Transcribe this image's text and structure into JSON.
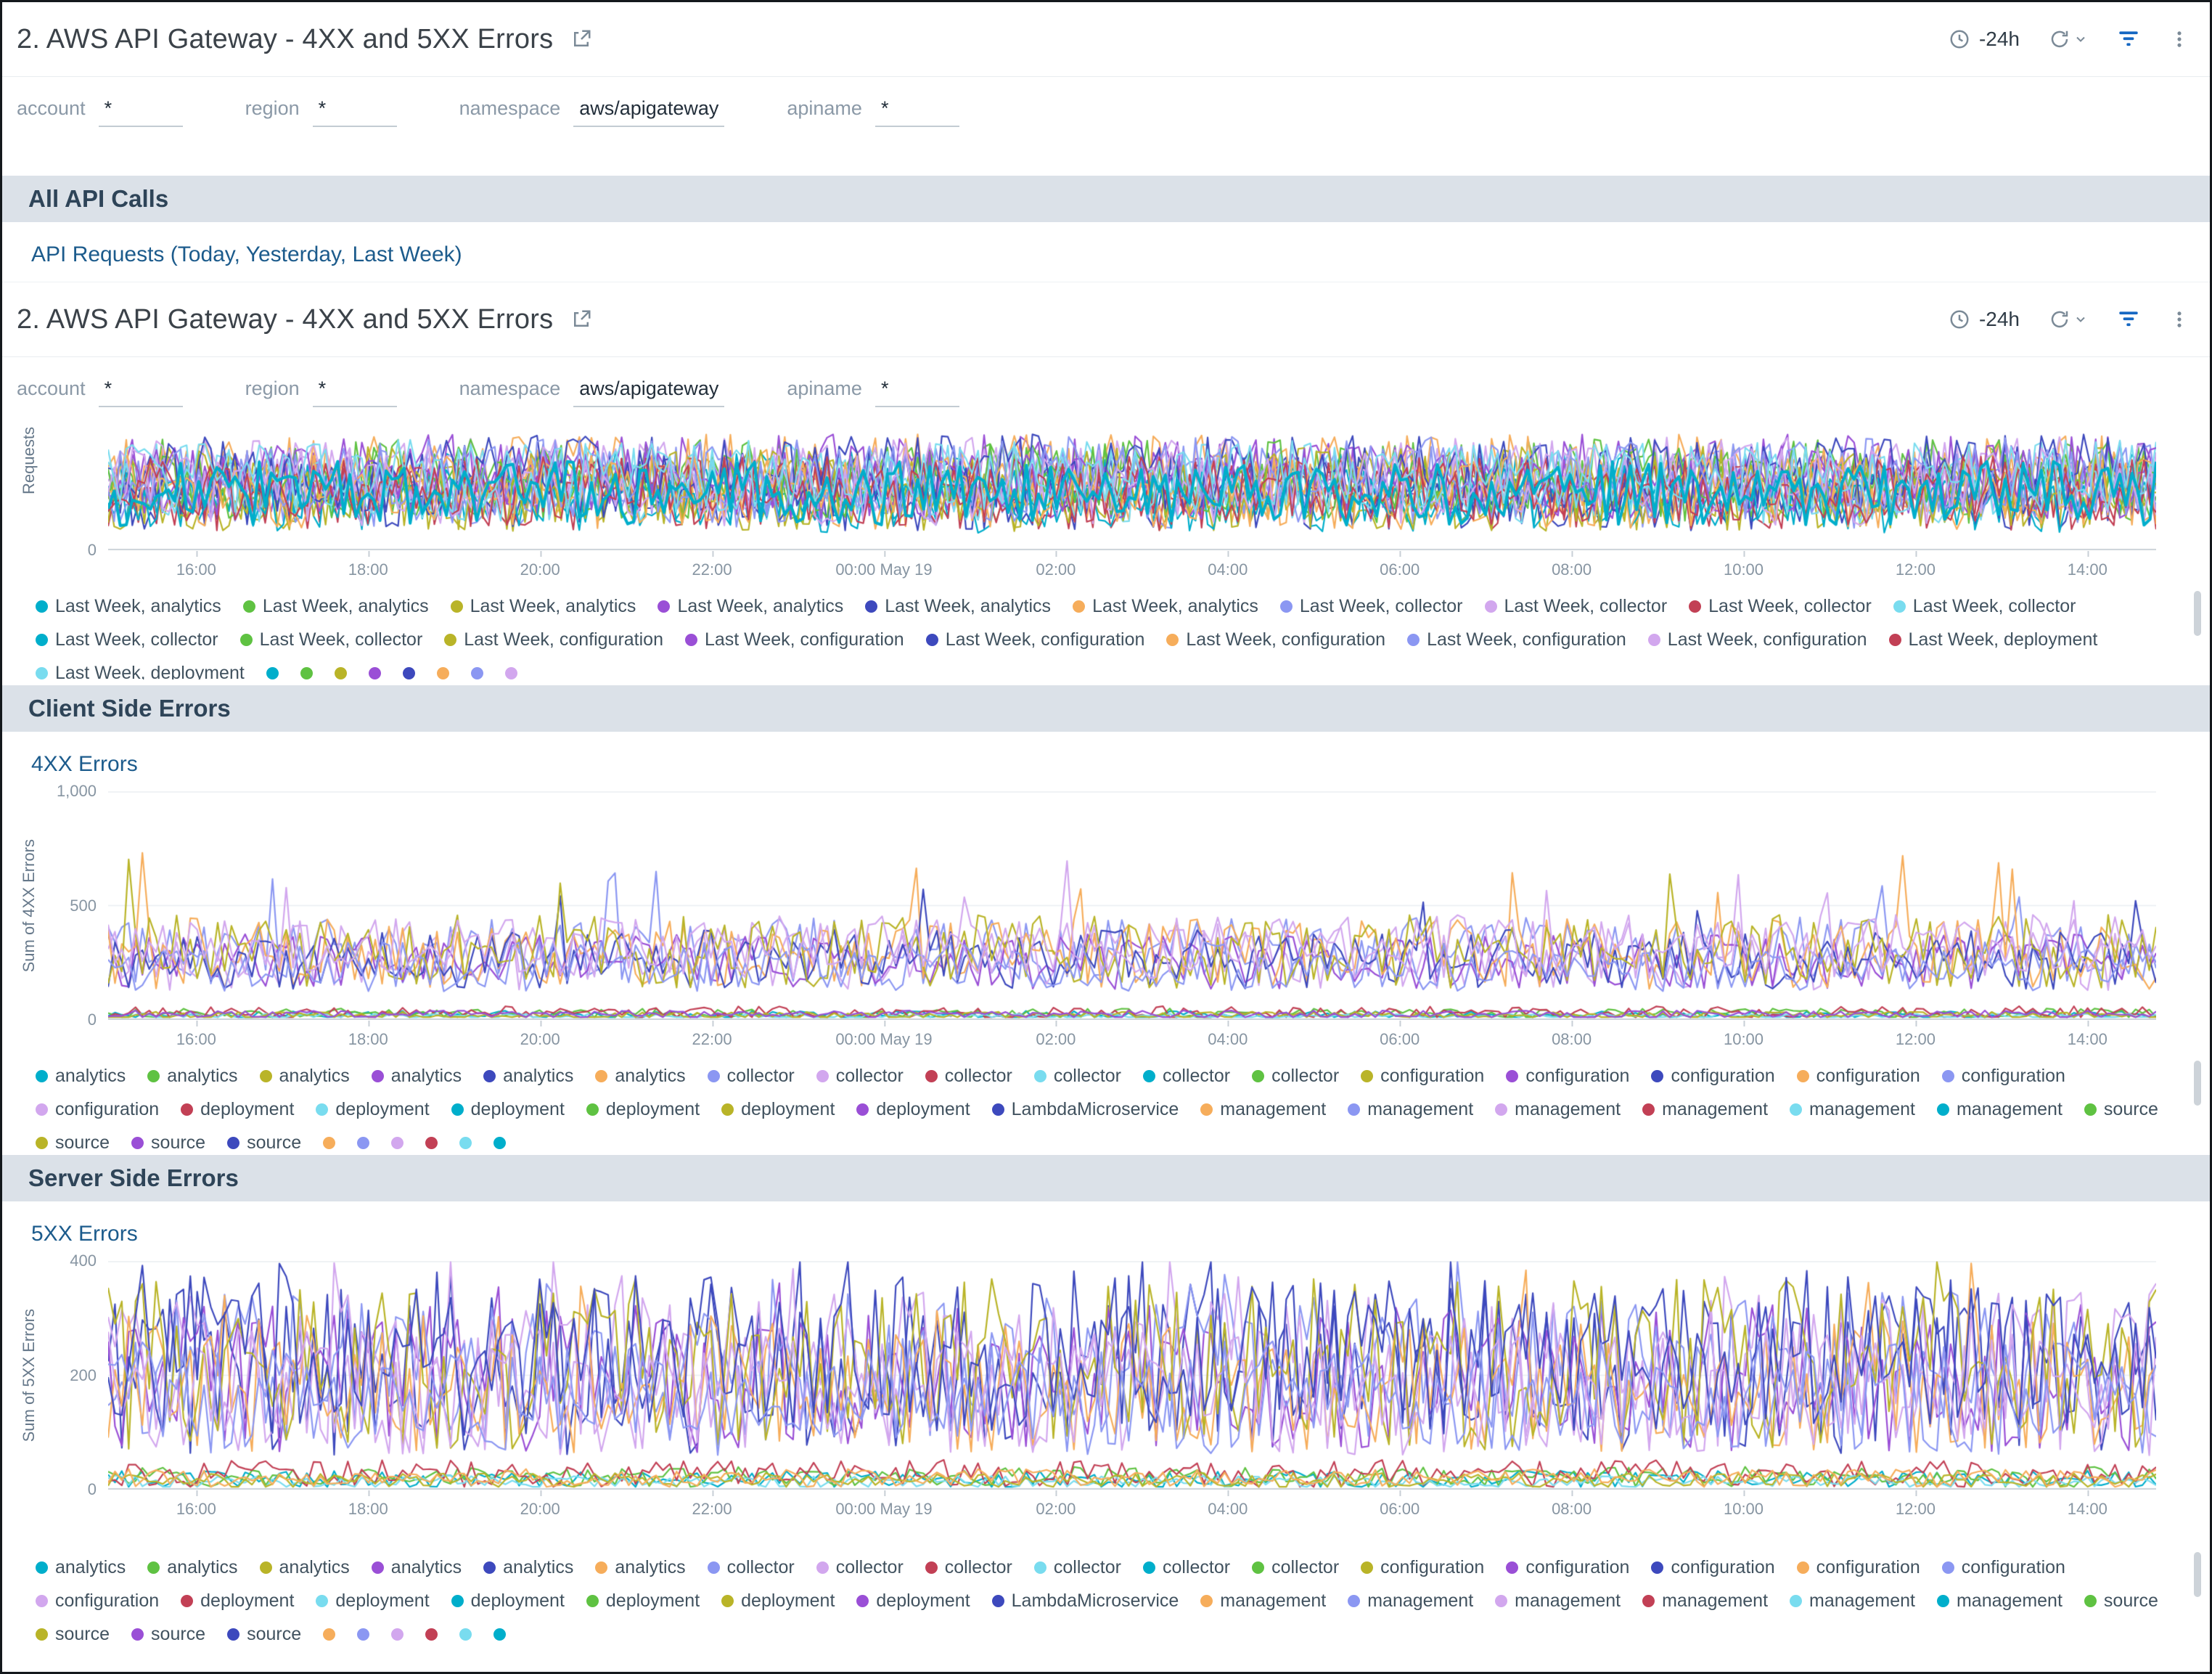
{
  "header": {
    "title": "2. AWS API Gateway - 4XX and 5XX Errors",
    "time_range": "-24h"
  },
  "icons": {
    "share": "open-in-new",
    "clock": "clock",
    "refresh": "refresh",
    "chevron": "chevron-down",
    "filter": "filter-funnel",
    "kebab": "kebab-menu",
    "legend_dot": "series-color-dot"
  },
  "filters": [
    {
      "label": "account",
      "value": "*"
    },
    {
      "label": "region",
      "value": "*"
    },
    {
      "label": "namespace",
      "value": "aws/apigateway"
    },
    {
      "label": "apiname",
      "value": "*"
    }
  ],
  "sections": {
    "all_api_calls": "All API Calls",
    "client_side": "Client Side Errors",
    "server_side": "Server Side Errors"
  },
  "panels": {
    "api_requests": "API Requests (Today, Yesterday, Last Week)",
    "fourxx": "4XX Errors",
    "fivexx": "5XX Errors"
  },
  "palette": [
    "#00aecb",
    "#5fc242",
    "#b9b428",
    "#9a4fd6",
    "#3d49bd",
    "#f6ad5b",
    "#8b97f2",
    "#d2a7ee",
    "#c24055",
    "#79dcef"
  ],
  "legends": {
    "api_requests": {
      "items": [
        {
          "label": "Last Week, analytics",
          "color": 0
        },
        {
          "label": "Last Week, analytics",
          "color": 1
        },
        {
          "label": "Last Week, analytics",
          "color": 2
        },
        {
          "label": "Last Week, analytics",
          "color": 3
        },
        {
          "label": "Last Week, analytics",
          "color": 4
        },
        {
          "label": "Last Week, analytics",
          "color": 5
        },
        {
          "label": "Last Week, collector",
          "color": 6
        },
        {
          "label": "Last Week, collector",
          "color": 7
        },
        {
          "label": "Last Week, collector",
          "color": 8
        },
        {
          "label": "Last Week, collector",
          "color": 9
        },
        {
          "label": "Last Week, collector",
          "color": 0
        },
        {
          "label": "Last Week, collector",
          "color": 1
        },
        {
          "label": "Last Week, configuration",
          "color": 2
        },
        {
          "label": "Last Week, configuration",
          "color": 3
        },
        {
          "label": "Last Week, configuration",
          "color": 4
        },
        {
          "label": "Last Week, configuration",
          "color": 5
        },
        {
          "label": "Last Week, configuration",
          "color": 6
        },
        {
          "label": "Last Week, configuration",
          "color": 7
        },
        {
          "label": "Last Week, deployment",
          "color": 8
        },
        {
          "label": "Last Week, deployment",
          "color": 9
        }
      ],
      "overflow_dots": [
        0,
        1,
        2,
        3,
        4,
        5,
        6,
        7
      ]
    },
    "errors": {
      "items": [
        {
          "label": "analytics",
          "color": 0
        },
        {
          "label": "analytics",
          "color": 1
        },
        {
          "label": "analytics",
          "color": 2
        },
        {
          "label": "analytics",
          "color": 3
        },
        {
          "label": "analytics",
          "color": 4
        },
        {
          "label": "analytics",
          "color": 5
        },
        {
          "label": "collector",
          "color": 6
        },
        {
          "label": "collector",
          "color": 7
        },
        {
          "label": "collector",
          "color": 8
        },
        {
          "label": "collector",
          "color": 9
        },
        {
          "label": "collector",
          "color": 0
        },
        {
          "label": "collector",
          "color": 1
        },
        {
          "label": "configuration",
          "color": 2
        },
        {
          "label": "configuration",
          "color": 3
        },
        {
          "label": "configuration",
          "color": 4
        },
        {
          "label": "configuration",
          "color": 5
        },
        {
          "label": "configuration",
          "color": 6
        },
        {
          "label": "configuration",
          "color": 7
        },
        {
          "label": "deployment",
          "color": 8
        },
        {
          "label": "deployment",
          "color": 9
        },
        {
          "label": "deployment",
          "color": 0
        },
        {
          "label": "deployment",
          "color": 1
        },
        {
          "label": "deployment",
          "color": 2
        },
        {
          "label": "deployment",
          "color": 3
        },
        {
          "label": "LambdaMicroservice",
          "color": 4
        },
        {
          "label": "management",
          "color": 5
        },
        {
          "label": "management",
          "color": 6
        },
        {
          "label": "management",
          "color": 7
        },
        {
          "label": "management",
          "color": 8
        },
        {
          "label": "management",
          "color": 9
        },
        {
          "label": "management",
          "color": 0
        },
        {
          "label": "source",
          "color": 1
        },
        {
          "label": "source",
          "color": 2
        },
        {
          "label": "source",
          "color": 3
        },
        {
          "label": "source",
          "color": 4
        }
      ],
      "overflow_dots": [
        5,
        6,
        7,
        8,
        9,
        0
      ]
    }
  },
  "chart_data": [
    {
      "type": "line",
      "panel": "API Requests (Today, Yesterday, Last Week)",
      "ylabel": "Requests",
      "x_ticks": [
        "16:00",
        "18:00",
        "20:00",
        "22:00",
        "00:00 May 19",
        "02:00",
        "04:00",
        "06:00",
        "08:00",
        "10:00",
        "12:00",
        "14:00"
      ],
      "y_ticks": [
        "0"
      ],
      "ylim": [
        0,
        100
      ],
      "grid": false,
      "legend_position": "bottom",
      "note": "dense overlapping noisy series spanning full 24h window; values approximate",
      "points": 340,
      "series": [
        {
          "name": "Last Week, analytics",
          "color": 0,
          "base": 50,
          "amp": 30,
          "seed": 11
        },
        {
          "name": "Last Week, analytics",
          "color": 1,
          "base": 56,
          "amp": 34,
          "seed": 12
        },
        {
          "name": "Last Week, analytics",
          "color": 2,
          "base": 45,
          "amp": 30,
          "seed": 13
        },
        {
          "name": "Last Week, analytics",
          "color": 3,
          "base": 60,
          "amp": 34,
          "seed": 14
        },
        {
          "name": "Last Week, analytics",
          "color": 4,
          "base": 48,
          "amp": 32,
          "seed": 15
        },
        {
          "name": "Last Week, analytics",
          "color": 5,
          "base": 58,
          "amp": 36,
          "seed": 16
        },
        {
          "name": "Last Week, collector",
          "color": 6,
          "base": 52,
          "amp": 34,
          "seed": 17
        },
        {
          "name": "Last Week, collector",
          "color": 7,
          "base": 62,
          "amp": 30,
          "seed": 18
        },
        {
          "name": "Last Week, collector",
          "color": 8,
          "base": 46,
          "amp": 30,
          "seed": 19
        },
        {
          "name": "Last Week, collector",
          "color": 9,
          "base": 55,
          "amp": 33,
          "seed": 20
        },
        {
          "name": "Last Week, collector",
          "color": 0,
          "base": 42,
          "amp": 28,
          "seed": 21
        },
        {
          "name": "Last Week, collector",
          "color": 1,
          "base": 58,
          "amp": 32,
          "seed": 22
        },
        {
          "name": "Last Week, configuration",
          "color": 2,
          "base": 50,
          "amp": 34,
          "seed": 23
        },
        {
          "name": "Last Week, configuration",
          "color": 3,
          "base": 55,
          "amp": 30,
          "seed": 24
        },
        {
          "name": "Last Week, configuration",
          "color": 4,
          "base": 60,
          "amp": 34,
          "seed": 25
        },
        {
          "name": "Last Week, configuration",
          "color": 5,
          "base": 47,
          "amp": 30,
          "seed": 26
        },
        {
          "name": "Last Week, configuration",
          "color": 6,
          "base": 57,
          "amp": 35,
          "seed": 27
        },
        {
          "name": "Last Week, configuration",
          "color": 7,
          "base": 52,
          "amp": 32,
          "seed": 28
        },
        {
          "name": "Last Week, deployment",
          "color": 8,
          "base": 48,
          "amp": 28,
          "seed": 29
        },
        {
          "name": "Last Week, deployment",
          "color": 9,
          "base": 60,
          "amp": 30,
          "seed": 30
        },
        {
          "name": "Last Week, analytics",
          "color": 0,
          "base": 46,
          "amp": 26,
          "seed": 99,
          "lw": 4
        }
      ]
    },
    {
      "type": "line",
      "panel": "4XX Errors",
      "ylabel": "Sum of 4XX Errors",
      "x_ticks": [
        "16:00",
        "18:00",
        "20:00",
        "22:00",
        "00:00 May 19",
        "02:00",
        "04:00",
        "06:00",
        "08:00",
        "10:00",
        "12:00",
        "14:00"
      ],
      "y_ticks": [
        "1,000",
        "500",
        "0"
      ],
      "ylim": [
        0,
        1000
      ],
      "gridlines": [
        500,
        1000
      ],
      "legend_position": "bottom",
      "note": "main band oscillates roughly 100-500 with occasional spikes toward 650; several series hug 0-60",
      "points": 300,
      "series": [
        {
          "name": "collector",
          "color": 6,
          "base": 300,
          "amp": 150,
          "seed": 41,
          "spike": 0.02,
          "spike_to": 620
        },
        {
          "name": "configuration",
          "color": 7,
          "base": 280,
          "amp": 150,
          "seed": 42,
          "spike": 0.015,
          "spike_to": 600
        },
        {
          "name": "analytics",
          "color": 3,
          "base": 255,
          "amp": 120,
          "seed": 43
        },
        {
          "name": "configuration",
          "color": 5,
          "base": 290,
          "amp": 155,
          "seed": 44,
          "spike": 0.02,
          "spike_to": 640
        },
        {
          "name": "analytics",
          "color": 4,
          "base": 265,
          "amp": 130,
          "seed": 45,
          "spike": 0.01,
          "spike_to": 560
        },
        {
          "name": "configuration",
          "color": 2,
          "base": 300,
          "amp": 160,
          "seed": 46,
          "spike": 0.02,
          "spike_to": 650
        },
        {
          "name": "management",
          "color": 6,
          "base": 235,
          "amp": 110,
          "seed": 47
        },
        {
          "name": "management",
          "color": 7,
          "base": 320,
          "amp": 140,
          "seed": 48,
          "spike": 0.015,
          "spike_to": 620
        },
        {
          "name": "analytics",
          "color": 0,
          "base": 22,
          "amp": 18,
          "seed": 49
        },
        {
          "name": "deployment",
          "color": 1,
          "base": 28,
          "amp": 22,
          "seed": 50
        },
        {
          "name": "deployment",
          "color": 8,
          "base": 32,
          "amp": 28,
          "seed": 51
        },
        {
          "name": "source",
          "color": 9,
          "base": 16,
          "amp": 12,
          "seed": 52
        },
        {
          "name": "source",
          "color": 2,
          "base": 20,
          "amp": 16,
          "seed": 53
        },
        {
          "name": "LambdaMicroservice",
          "color": 3,
          "base": 24,
          "amp": 18,
          "seed": 54
        }
      ]
    },
    {
      "type": "line",
      "panel": "5XX Errors",
      "ylabel": "Sum of 5XX Errors",
      "x_ticks": [
        "16:00",
        "18:00",
        "20:00",
        "22:00",
        "00:00 May 19",
        "02:00",
        "04:00",
        "06:00",
        "08:00",
        "10:00",
        "12:00",
        "14:00"
      ],
      "y_ticks": [
        "400",
        "200",
        "0"
      ],
      "ylim": [
        0,
        400
      ],
      "gridlines": [
        200,
        400
      ],
      "legend_position": "bottom",
      "note": "main band oscillates roughly 50-350 across full width; several series hug 0-50",
      "points": 300,
      "series": [
        {
          "name": "management",
          "color": 4,
          "base": 210,
          "amp": 150,
          "seed": 61,
          "spike": 0.03,
          "spike_to": 385
        },
        {
          "name": "analytics",
          "color": 3,
          "base": 195,
          "amp": 130,
          "seed": 62,
          "spike": 0.02,
          "spike_to": 370
        },
        {
          "name": "collector",
          "color": 6,
          "base": 215,
          "amp": 130,
          "seed": 63,
          "spike": 0.02,
          "spike_to": 380
        },
        {
          "name": "configuration",
          "color": 7,
          "base": 205,
          "amp": 140,
          "seed": 64,
          "spike": 0.02,
          "spike_to": 375
        },
        {
          "name": "configuration",
          "color": 5,
          "base": 185,
          "amp": 120,
          "seed": 65,
          "spike": 0.02,
          "spike_to": 360
        },
        {
          "name": "configuration",
          "color": 2,
          "base": 220,
          "amp": 150,
          "seed": 66,
          "spike": 0.02,
          "spike_to": 385
        },
        {
          "name": "management",
          "color": 7,
          "base": 170,
          "amp": 110,
          "seed": 67
        },
        {
          "name": "deployment",
          "color": 4,
          "base": 235,
          "amp": 140,
          "seed": 68,
          "spike": 0.02,
          "spike_to": 390
        },
        {
          "name": "source",
          "color": 6,
          "base": 160,
          "amp": 100,
          "seed": 69
        },
        {
          "name": "analytics",
          "color": 0,
          "base": 18,
          "amp": 15,
          "seed": 70
        },
        {
          "name": "deployment",
          "color": 1,
          "base": 22,
          "amp": 18,
          "seed": 71
        },
        {
          "name": "deployment",
          "color": 8,
          "base": 28,
          "amp": 24,
          "seed": 72
        },
        {
          "name": "source",
          "color": 9,
          "base": 14,
          "amp": 11,
          "seed": 73
        },
        {
          "name": "source",
          "color": 2,
          "base": 16,
          "amp": 13,
          "seed": 74
        },
        {
          "name": "collector",
          "color": 5,
          "base": 20,
          "amp": 16,
          "seed": 75
        }
      ]
    }
  ]
}
